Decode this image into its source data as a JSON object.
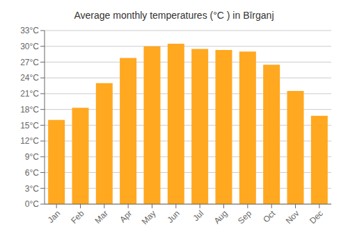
{
  "chart_data": {
    "type": "bar",
    "title": "Average monthly temperatures (°C ) in Bīrganj",
    "categories": [
      "Jan",
      "Feb",
      "Mar",
      "Apr",
      "May",
      "Jun",
      "Jul",
      "Aug",
      "Sep",
      "Oct",
      "Nov",
      "Dec"
    ],
    "values": [
      16.0,
      18.3,
      23.0,
      27.8,
      30.0,
      30.5,
      29.5,
      29.3,
      29.0,
      26.5,
      21.5,
      16.8
    ],
    "color": "#FFA820",
    "ylim": [
      0,
      33
    ],
    "yticks": [
      {
        "value": 0,
        "label": "0°C"
      },
      {
        "value": 3,
        "label": "3°C"
      },
      {
        "value": 6,
        "label": "6°C"
      },
      {
        "value": 9,
        "label": "9°C"
      },
      {
        "value": 12,
        "label": "12°C"
      },
      {
        "value": 15,
        "label": "15°C"
      },
      {
        "value": 18,
        "label": "18°C"
      },
      {
        "value": 21,
        "label": "21°C"
      },
      {
        "value": 24,
        "label": "24°C"
      },
      {
        "value": 27,
        "label": "27°C"
      },
      {
        "value": 30,
        "label": "30°C"
      },
      {
        "value": 33,
        "label": "33°C"
      }
    ],
    "grid": true
  }
}
